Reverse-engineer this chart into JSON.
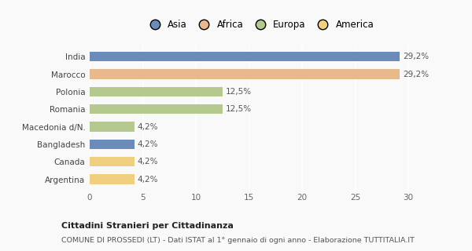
{
  "categories": [
    "India",
    "Marocco",
    "Polonia",
    "Romania",
    "Macedonia d/N.",
    "Bangladesh",
    "Canada",
    "Argentina"
  ],
  "values": [
    29.2,
    29.2,
    12.5,
    12.5,
    4.2,
    4.2,
    4.2,
    4.2
  ],
  "labels": [
    "29,2%",
    "29,2%",
    "12,5%",
    "12,5%",
    "4,2%",
    "4,2%",
    "4,2%",
    "4,2%"
  ],
  "colors": [
    "#6b8cba",
    "#e8b98a",
    "#b5c98e",
    "#b5c98e",
    "#b5c98e",
    "#6b8cba",
    "#f0d080",
    "#f0d080"
  ],
  "legend_items": [
    {
      "label": "Asia",
      "color": "#6b8cba"
    },
    {
      "label": "Africa",
      "color": "#e8b98a"
    },
    {
      "label": "Europa",
      "color": "#b5c98e"
    },
    {
      "label": "America",
      "color": "#f0d080"
    }
  ],
  "xlim": [
    0,
    32
  ],
  "xticks": [
    0,
    5,
    10,
    15,
    20,
    25,
    30
  ],
  "title_bold": "Cittadini Stranieri per Cittadinanza",
  "subtitle": "COMUNE DI PROSSEDI (LT) - Dati ISTAT al 1° gennaio di ogni anno - Elaborazione TUTTITALIA.IT",
  "background_color": "#f9f9f9",
  "grid_color": "#ffffff",
  "bar_height": 0.55
}
